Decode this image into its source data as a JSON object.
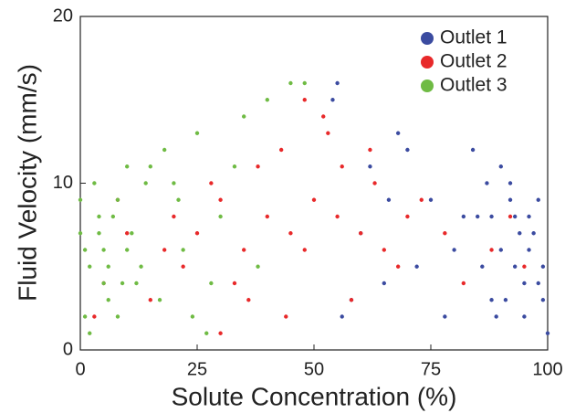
{
  "chart_data": {
    "type": "scatter",
    "x_label": "Solute Concentration (%)",
    "y_label": "Fluid Velocity (mm/s)",
    "xlim": [
      0,
      100
    ],
    "xticks": [
      0,
      25,
      50,
      75,
      100
    ],
    "ylim": [
      0,
      20
    ],
    "yticks": [
      0,
      10,
      20
    ],
    "legend": "upper right",
    "series": [
      {
        "name": "Outlet 1",
        "color": "#3b4ba0",
        "x": [
          88,
          90,
          92,
          95,
          97,
          99,
          86,
          89,
          93,
          96,
          98,
          100,
          91,
          94,
          87,
          99,
          92,
          85,
          95,
          98,
          80,
          75,
          70,
          65,
          60,
          55,
          58,
          62,
          68,
          72,
          78,
          82,
          54,
          56,
          66,
          84,
          90,
          96,
          93,
          88
        ],
        "values": [
          8,
          6,
          9,
          4,
          7,
          3,
          5,
          2,
          8,
          6,
          9,
          1,
          3,
          7,
          10,
          5,
          10,
          8,
          2,
          4,
          6,
          9,
          12,
          4,
          7,
          16,
          3,
          11,
          13,
          5,
          2,
          8,
          15,
          2,
          9,
          12,
          11,
          8,
          5,
          3
        ]
      },
      {
        "name": "Outlet 2",
        "color": "#e8292a",
        "x": [
          20,
          25,
          30,
          35,
          40,
          45,
          50,
          55,
          60,
          65,
          70,
          22,
          28,
          33,
          38,
          43,
          48,
          53,
          58,
          63,
          68,
          73,
          5,
          10,
          15,
          3,
          8,
          78,
          82,
          88,
          92,
          48,
          52,
          44,
          56,
          36,
          62,
          30,
          18,
          95
        ],
        "values": [
          8,
          7,
          9,
          6,
          8,
          7,
          9,
          8,
          7,
          6,
          8,
          5,
          10,
          4,
          11,
          12,
          6,
          13,
          3,
          10,
          5,
          9,
          4,
          7,
          3,
          2,
          9,
          7,
          4,
          6,
          8,
          15,
          14,
          2,
          11,
          3,
          12,
          1,
          6,
          5
        ]
      },
      {
        "name": "Outlet 3",
        "color": "#6fbb44",
        "x": [
          0,
          2,
          4,
          6,
          8,
          10,
          12,
          14,
          1,
          3,
          5,
          7,
          9,
          11,
          13,
          0,
          2,
          4,
          6,
          15,
          18,
          20,
          22,
          25,
          28,
          30,
          35,
          40,
          45,
          48,
          17,
          24,
          33,
          38,
          27,
          21,
          10,
          5,
          1,
          8
        ],
        "values": [
          7,
          5,
          8,
          3,
          9,
          6,
          4,
          10,
          2,
          10,
          6,
          8,
          4,
          7,
          5,
          9,
          1,
          7,
          5,
          11,
          12,
          10,
          6,
          13,
          4,
          8,
          14,
          15,
          16,
          16,
          3,
          2,
          11,
          5,
          1,
          9,
          11,
          4,
          6,
          2
        ]
      }
    ]
  }
}
